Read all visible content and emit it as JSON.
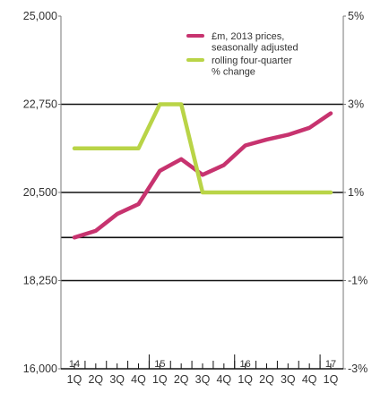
{
  "chart_data": {
    "type": "line",
    "categories": [
      "1Q",
      "2Q",
      "3Q",
      "4Q",
      "1Q",
      "2Q",
      "3Q",
      "4Q",
      "1Q",
      "2Q",
      "3Q",
      "4Q",
      "1Q"
    ],
    "year_labels": [
      {
        "label": "14",
        "index": 0
      },
      {
        "label": "15",
        "index": 4
      },
      {
        "label": "16",
        "index": 8
      },
      {
        "label": "17",
        "index": 12
      }
    ],
    "y_left": {
      "ticks": [
        "16,000",
        "18,250",
        "20,500",
        "22,750",
        "25,000"
      ],
      "ylim": [
        16000,
        25000
      ]
    },
    "y_right": {
      "ticks": [
        "-3%",
        "-1%",
        "1%",
        "3%",
        "5%"
      ],
      "ylim": [
        -3,
        5
      ]
    },
    "gridlines_left": [
      18250,
      19350,
      20500,
      22750
    ],
    "series": [
      {
        "name": "£m, 2013 prices,\nseasonally adjusted",
        "legend_lines": [
          "£m, 2013 prices,",
          "seasonally adjusted"
        ],
        "axis": "left",
        "color": "#c7336f",
        "values": [
          19350,
          19520,
          19950,
          20200,
          21050,
          21350,
          20950,
          21200,
          21700,
          21850,
          21970,
          22150,
          22520
        ]
      },
      {
        "name": "rolling four-quarter\n% change",
        "legend_lines": [
          "rolling four-quarter",
          "% change"
        ],
        "axis": "right",
        "color": "#b9d447",
        "values": [
          2.0,
          2.0,
          2.0,
          2.0,
          3.0,
          3.0,
          1.0,
          1.0,
          1.0,
          1.0,
          1.0,
          1.0,
          1.0
        ]
      }
    ]
  }
}
